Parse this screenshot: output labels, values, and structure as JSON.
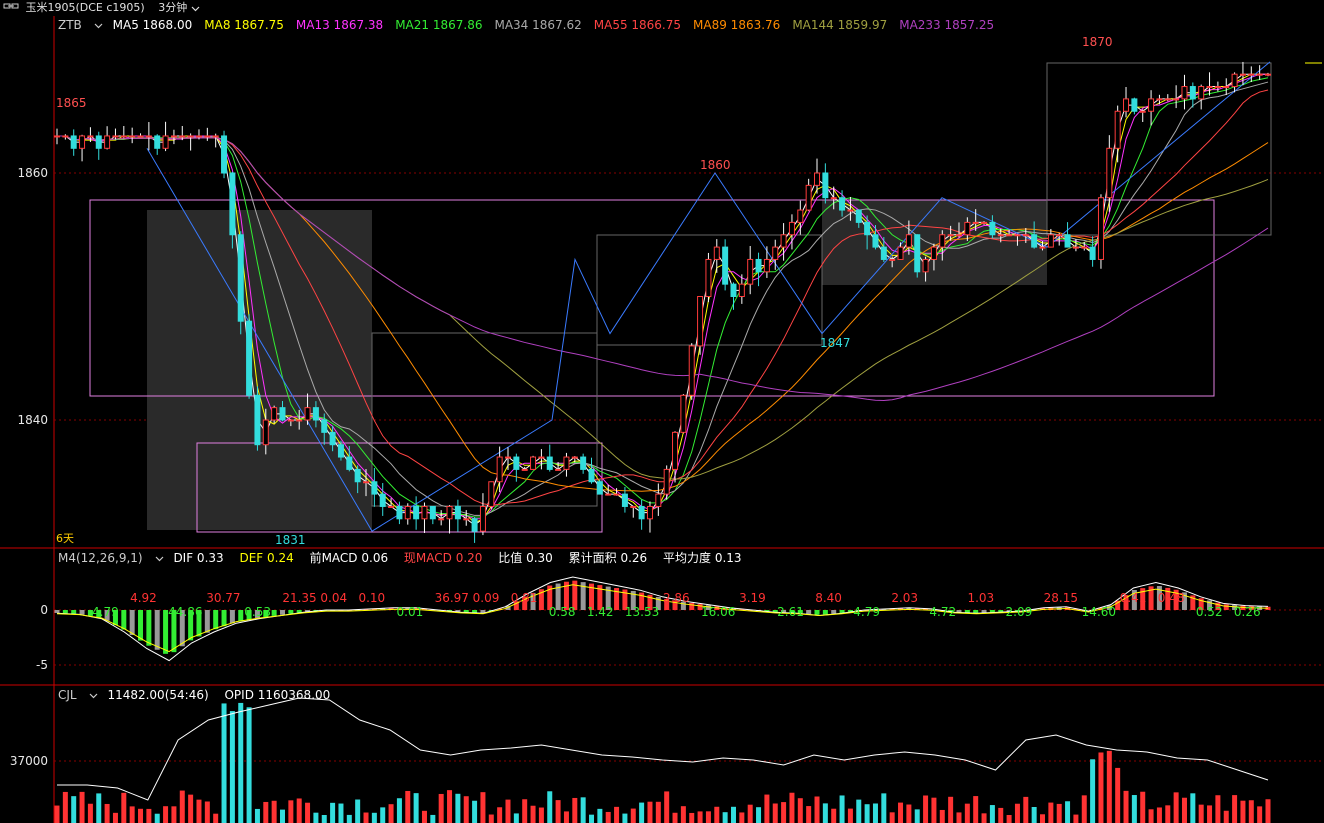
{
  "topbar": {
    "link_icon": "link-icon",
    "instrument": "玉米1905(DCE c1905)",
    "period": "3分钟"
  },
  "main_panel": {
    "indicator_name": "ZTB",
    "ma": [
      {
        "label": "MA5",
        "value": "1868.00",
        "color": "#ffffff"
      },
      {
        "label": "MA8",
        "value": "1867.75",
        "color": "#ffff00"
      },
      {
        "label": "MA13",
        "value": "1867.38",
        "color": "#ff33ff"
      },
      {
        "label": "MA21",
        "value": "1867.86",
        "color": "#33ee33"
      },
      {
        "label": "MA34",
        "value": "1867.62",
        "color": "#aaaaaa"
      },
      {
        "label": "MA55",
        "value": "1866.75",
        "color": "#ff4444"
      },
      {
        "label": "MA89",
        "value": "1863.76",
        "color": "#ff8c00"
      },
      {
        "label": "MA144",
        "value": "1859.97",
        "color": "#a0a040"
      },
      {
        "label": "MA233",
        "value": "1857.25",
        "color": "#b040c0"
      }
    ],
    "y_ticks": [
      "1860",
      "1840"
    ],
    "annotations": {
      "high_left": "1865",
      "low": "1831",
      "mid_high": "1860",
      "mid_low": "1847",
      "high_right": "1870",
      "days": "6天"
    }
  },
  "macd_panel": {
    "name": "M4(12,26,9,1)",
    "dif": "DIF 0.33",
    "def": "DEF 0.24",
    "prev_macd": "前MACD 0.06",
    "cur_macd": "现MACD 0.20",
    "ratio": "比值 0.30",
    "cum_area": "累计面积 0.26",
    "avg_force": "平均力度 0.13",
    "y_ticks": [
      "0",
      "-5"
    ],
    "area_labels": [
      {
        "text": "4.79",
        "color": "#33ee33"
      },
      {
        "text": "4.92",
        "color": "#ff3333"
      },
      {
        "text": "44.86",
        "color": "#33ee33"
      },
      {
        "text": "30.77",
        "color": "#ff3333"
      },
      {
        "text": "0.53",
        "color": "#33ee33"
      },
      {
        "text": "21.35",
        "color": "#ff3333"
      },
      {
        "text": "0.04",
        "color": "#ff3333"
      },
      {
        "text": "0.10",
        "color": "#ff3333"
      },
      {
        "text": "0.01",
        "color": "#33ee33"
      },
      {
        "text": "36.97",
        "color": "#ff3333"
      },
      {
        "text": "0.09",
        "color": "#ff3333"
      },
      {
        "text": "0.81",
        "color": "#ff3333"
      },
      {
        "text": "0.58",
        "color": "#33ee33"
      },
      {
        "text": "1.42",
        "color": "#33ee33"
      },
      {
        "text": "13.53",
        "color": "#33ee33"
      },
      {
        "text": "2.86",
        "color": "#ff3333"
      },
      {
        "text": "16.06",
        "color": "#33ee33"
      },
      {
        "text": "3.19",
        "color": "#ff3333"
      },
      {
        "text": "2.61",
        "color": "#33ee33"
      },
      {
        "text": "8.40",
        "color": "#ff3333"
      },
      {
        "text": "4.79",
        "color": "#33ee33"
      },
      {
        "text": "2.03",
        "color": "#ff3333"
      },
      {
        "text": "4.72",
        "color": "#33ee33"
      },
      {
        "text": "1.03",
        "color": "#ff3333"
      },
      {
        "text": "2.09",
        "color": "#33ee33"
      },
      {
        "text": "28.15",
        "color": "#ff3333"
      },
      {
        "text": "14.60",
        "color": "#33ee33"
      },
      {
        "text": "0.41",
        "color": "#ff3333"
      },
      {
        "text": "0.48",
        "color": "#ff3333"
      },
      {
        "text": "0.52",
        "color": "#33ee33"
      },
      {
        "text": "0.26",
        "color": "#33ee33"
      }
    ]
  },
  "volume_panel": {
    "name": "CJL",
    "volume": "11482.00(54:46)",
    "opid": "OPID 1160368.00",
    "y_ticks": [
      "37000"
    ]
  },
  "chart_data": {
    "type": "candlestick",
    "title": "玉米1905(DCE c1905) 3分钟",
    "ylim": [
      1828,
      1873
    ],
    "y_ticks": [
      1840,
      1860
    ],
    "candles_close": [
      1863,
      1863,
      1862,
      1863,
      1863,
      1862,
      1863,
      1863,
      1863,
      1863,
      1863,
      1863,
      1862,
      1863,
      1863,
      1863,
      1863,
      1863,
      1863,
      1863,
      1860,
      1855,
      1848,
      1842,
      1838,
      1840,
      1841,
      1840,
      1840,
      1840,
      1841,
      1840,
      1839,
      1838,
      1837,
      1836,
      1835,
      1835,
      1834,
      1833,
      1833,
      1832,
      1833,
      1832,
      1833,
      1832,
      1832,
      1833,
      1832,
      1832,
      1831,
      1833,
      1835,
      1837,
      1837,
      1836,
      1836,
      1837,
      1837,
      1836,
      1836,
      1837,
      1837,
      1836,
      1835,
      1834,
      1834,
      1834,
      1833,
      1833,
      1832,
      1833,
      1834,
      1836,
      1839,
      1842,
      1846,
      1850,
      1853,
      1854,
      1851,
      1850,
      1851,
      1853,
      1852,
      1853,
      1854,
      1855,
      1856,
      1857,
      1859,
      1860,
      1858,
      1858,
      1857,
      1857,
      1856,
      1855,
      1854,
      1853,
      1853,
      1854,
      1855,
      1852,
      1853,
      1854,
      1855,
      1855,
      1855,
      1856,
      1856,
      1856,
      1855,
      1855,
      1855,
      1855,
      1855,
      1854,
      1854,
      1855,
      1855,
      1854,
      1854,
      1854,
      1853,
      1858,
      1862,
      1865,
      1866,
      1865,
      1865,
      1866,
      1866,
      1866,
      1866,
      1867,
      1866,
      1867,
      1867,
      1867,
      1867,
      1868,
      1868,
      1868,
      1868,
      1868
    ],
    "macd_dif": [
      -0.3,
      -0.4,
      -0.8,
      -2,
      -3.5,
      -4.6,
      -3,
      -2,
      -1.2,
      -0.8,
      -0.5,
      -0.2,
      0,
      0,
      0.1,
      0.2,
      0.2,
      0,
      -0.2,
      -0.3,
      0.3,
      1.5,
      2.5,
      3,
      2.6,
      2.2,
      1.8,
      1.2,
      0.8,
      0.5,
      0.2,
      0,
      -0.2,
      -0.3,
      -0.5,
      -0.3,
      0,
      0.1,
      0.2,
      0.1,
      -0.2,
      -0.3,
      -0.2,
      -0.1,
      0.2,
      0.3,
      -0.1,
      0.5,
      2,
      2.5,
      2,
      1.2,
      0.6,
      0.4,
      0.33
    ],
    "volume_ticks": [
      37000
    ],
    "opid_series": "line",
    "macd_ticks": [
      0,
      -5
    ]
  }
}
